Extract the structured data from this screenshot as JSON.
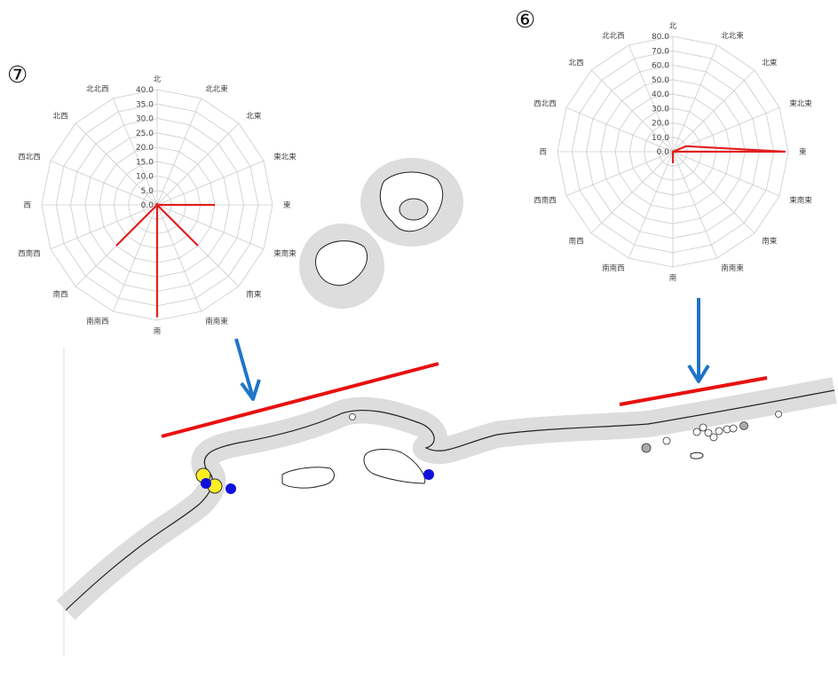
{
  "colors": {
    "series": "#e02020",
    "grid": "#cccccc",
    "buffer": "#dddddd",
    "coast": "#222222",
    "arrow": "#1e74c8",
    "front_line": "#e81010",
    "marker_yellow": "#ffee22",
    "marker_blue": "#1010dd",
    "marker_gray": "#aaaaaa",
    "marker_white": "#ffffff"
  },
  "labels": {
    "chart7": "⑦",
    "chart6": "⑥"
  },
  "directions": [
    "北",
    "北北東",
    "北東",
    "東北東",
    "東",
    "東南東",
    "南東",
    "南南東",
    "南",
    "南南西",
    "南西",
    "西南西",
    "西",
    "西北西",
    "北西",
    "北北西"
  ],
  "chart_data": [
    {
      "type": "radar",
      "name": "⑦",
      "categories": [
        "北",
        "北北東",
        "北東",
        "東北東",
        "東",
        "東南東",
        "南東",
        "南南東",
        "南",
        "南南西",
        "南西",
        "西南西",
        "西",
        "西北西",
        "北西",
        "北北西"
      ],
      "values": [
        0,
        0,
        0,
        0,
        20,
        0,
        20,
        0,
        39,
        0,
        20,
        0,
        0,
        0,
        0,
        0
      ],
      "rlim": [
        0,
        40
      ],
      "ticks": [
        "0.0",
        "5.0",
        "10.0",
        "15.0",
        "20.0",
        "25.0",
        "30.0",
        "35.0",
        "40.0"
      ]
    },
    {
      "type": "radar",
      "name": "⑥",
      "categories": [
        "北",
        "北北東",
        "北東",
        "東北東",
        "東",
        "東南東",
        "南東",
        "南南東",
        "南",
        "南南西",
        "南西",
        "西南西",
        "西",
        "西北西",
        "北西",
        "北北西"
      ],
      "values": [
        0,
        0,
        0,
        10,
        78,
        0,
        0,
        0,
        8,
        0,
        0,
        0,
        0,
        0,
        0,
        0
      ],
      "rlim": [
        0,
        80
      ],
      "ticks": [
        "0.0",
        "10.0",
        "20.0",
        "30.0",
        "40.0",
        "50.0",
        "60.0",
        "70.0",
        "80.0"
      ]
    }
  ]
}
